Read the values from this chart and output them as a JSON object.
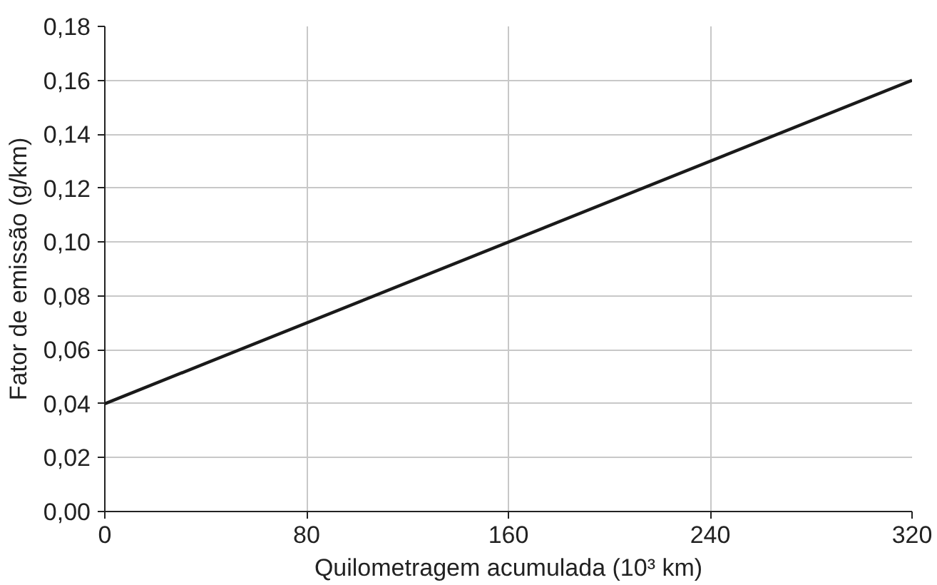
{
  "chart_data": {
    "type": "line",
    "xlabel": "Quilometragem acumulada (10³ km)",
    "ylabel": "Fator de emissão (g/km)",
    "x": [
      0,
      320
    ],
    "series": [
      {
        "color": "#1a1a1a",
        "values": [
          0.04,
          0.16
        ]
      }
    ],
    "xlim": [
      0,
      320
    ],
    "ylim": [
      0,
      0.18
    ],
    "xticks": [
      0,
      80,
      160,
      240,
      320
    ],
    "yticks": [
      {
        "value": 0,
        "label": "0,00"
      },
      {
        "value": 0.02,
        "label": "0,02"
      },
      {
        "value": 0.04,
        "label": "0,04"
      },
      {
        "value": 0.06,
        "label": "0,06"
      },
      {
        "value": 0.08,
        "label": "0,08"
      },
      {
        "value": 0.1,
        "label": "0,10"
      },
      {
        "value": 0.12,
        "label": "0,12"
      },
      {
        "value": 0.14,
        "label": "0,14"
      },
      {
        "value": 0.16,
        "label": "0,16"
      },
      {
        "value": 0.18,
        "label": "0,18"
      }
    ],
    "grid": true,
    "line_style": "solid"
  }
}
